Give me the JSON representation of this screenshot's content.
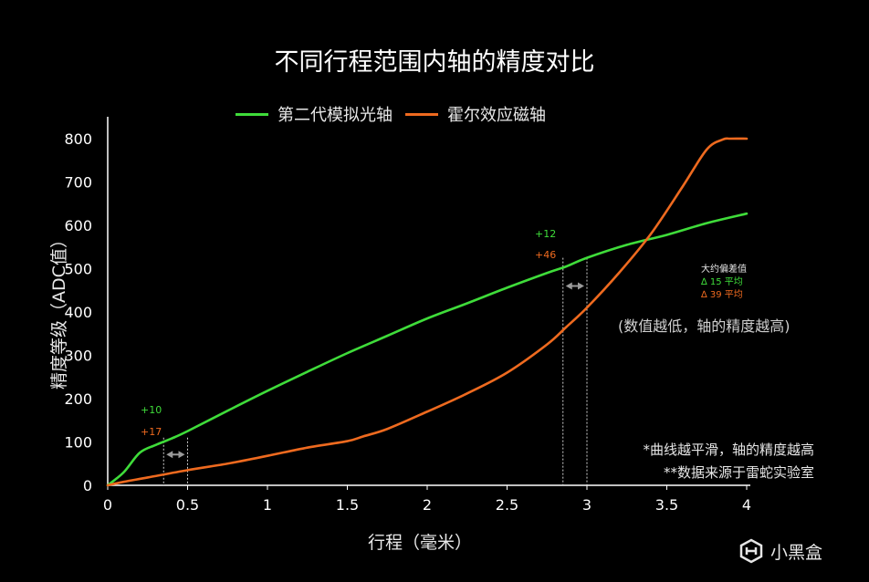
{
  "title": "不同行程范围内轴的精度对比",
  "legend": [
    {
      "label": "第二代模拟光轴",
      "color": "#3fdc3a"
    },
    {
      "label": "霍尔效应磁轴",
      "color": "#ee6a1f"
    }
  ],
  "ylabel": "精度等级（ADC值）",
  "xlabel": "行程（毫米）",
  "annotations": {
    "left_green": "+10",
    "left_orange": "+17",
    "right_green": "+12",
    "right_orange": "+46"
  },
  "avg_box": {
    "title": "大约偏差值",
    "green": "∆ 15 平均",
    "orange": "∆ 39 平均"
  },
  "remark": "(数值越低，轴的精度越高)",
  "footnotes": [
    "*曲线越平滑，轴的精度越高",
    "**数据来源于雷蛇实验室"
  ],
  "watermark": "小黑盒",
  "chart_data": {
    "type": "line",
    "title": "不同行程范围内轴的精度对比",
    "xlabel": "行程（毫米）",
    "ylabel": "精度等级（ADC值）",
    "xlim": [
      0,
      4
    ],
    "ylim": [
      0,
      800
    ],
    "xticks": [
      "0",
      "0.5",
      "1",
      "1.5",
      "2",
      "2.5",
      "3",
      "3.5",
      "4"
    ],
    "yticks": [
      "0",
      "100",
      "200",
      "300",
      "400",
      "500",
      "600",
      "700",
      "800"
    ],
    "grid": false,
    "legend_position": "top",
    "series": [
      {
        "name": "第二代模拟光轴",
        "color": "#3fdc3a",
        "x": [
          0,
          0.1,
          0.2,
          0.3,
          0.4,
          0.5,
          0.75,
          1.0,
          1.25,
          1.5,
          1.75,
          2.0,
          2.25,
          2.5,
          2.75,
          2.87,
          3.0,
          3.25,
          3.5,
          3.75,
          4.0
        ],
        "y": [
          0,
          30,
          75,
          93,
          108,
          125,
          172,
          218,
          262,
          305,
          345,
          385,
          420,
          456,
          490,
          505,
          525,
          555,
          578,
          605,
          627
        ]
      },
      {
        "name": "霍尔效应磁轴",
        "color": "#ee6a1f",
        "x": [
          0,
          0.1,
          0.25,
          0.5,
          0.75,
          1.0,
          1.25,
          1.5,
          1.6,
          1.75,
          2.0,
          2.25,
          2.5,
          2.75,
          2.87,
          3.0,
          3.2,
          3.4,
          3.6,
          3.75,
          3.85,
          3.9,
          4.0
        ],
        "y": [
          0,
          8,
          18,
          35,
          50,
          68,
          87,
          102,
          113,
          130,
          170,
          212,
          260,
          325,
          365,
          410,
          490,
          580,
          690,
          775,
          798,
          800,
          800
        ]
      }
    ],
    "intervals": [
      {
        "x_from": 0.35,
        "x_to": 0.5
      },
      {
        "x_from": 2.85,
        "x_to": 3.0
      }
    ]
  }
}
